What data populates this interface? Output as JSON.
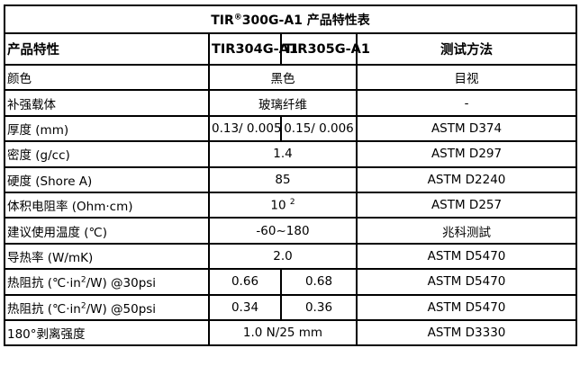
{
  "title": {
    "prefix": "TIR",
    "reg": "®",
    "rest": "300G-A1 产品特性表"
  },
  "header": [
    "产品特性",
    "TIR304G-A1",
    "TIR305G-A1",
    "测试方法"
  ],
  "rows": [
    {
      "prop": "颜色",
      "value": "黑色",
      "method": "目视"
    },
    {
      "prop": "补强载体",
      "value": "玻璃纤维",
      "method": "-"
    },
    {
      "prop": "厚度 (mm)",
      "v1": "0.13/ 0.005",
      "v2": "0.15/ 0.006",
      "method": "ASTM D374"
    },
    {
      "prop": "密度 (g/cc)",
      "value": "1.4",
      "method": "ASTM D297"
    },
    {
      "prop": "硬度 (Shore A)",
      "value": "85",
      "method": "ASTM D2240"
    },
    {
      "prop": "体积电阻率 (Ohm·cm)",
      "value": "10",
      "sup": "2",
      "method": "ASTM D257"
    },
    {
      "prop": "建议使用温度 (℃)",
      "value": "-60~180",
      "method": "兆科测試"
    },
    {
      "prop": "导热率 (W/mK)",
      "value": "2.0",
      "method": "ASTM D5470"
    },
    {
      "prop_a": "热阻抗 (℃·in",
      "prop_sup": "2",
      "prop_b": "/W) @30psi",
      "v1": "0.66",
      "v2": "0.68",
      "method": "ASTM D5470"
    },
    {
      "prop_a": "热阻抗 (℃·in",
      "prop_sup": "2",
      "prop_b": "/W) @50psi",
      "v1": "0.34",
      "v2": "0.36",
      "method": "ASTM D5470"
    },
    {
      "prop": "180°剥离强度",
      "value": "1.0 N/25 mm",
      "method": "ASTM D3330"
    }
  ]
}
